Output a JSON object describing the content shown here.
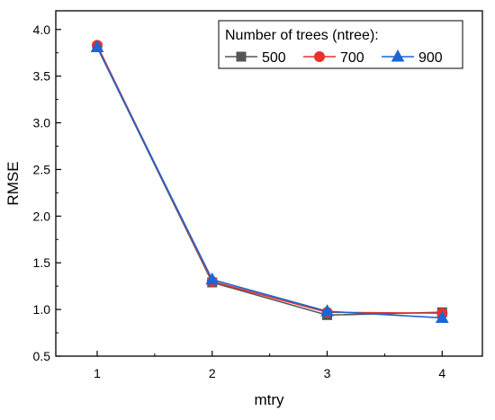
{
  "chart_data": {
    "type": "line",
    "title": "",
    "xlabel": "mtry",
    "ylabel": "RMSE",
    "x": [
      1,
      2,
      3,
      4
    ],
    "x_tick_labels": [
      "1",
      "2",
      "3",
      "4"
    ],
    "xlim": [
      0.64,
      4.35
    ],
    "ylim": [
      0.5,
      4.2
    ],
    "y_ticks": [
      0.5,
      1.0,
      1.5,
      2.0,
      2.5,
      3.0,
      3.5,
      4.0
    ],
    "y_tick_labels": [
      "0.5",
      "1.0",
      "1.5",
      "2.0",
      "2.5",
      "3.0",
      "3.5",
      "4.0"
    ],
    "grid": false,
    "legend": {
      "title": "Number of trees (ntree):",
      "placement": "top-right"
    },
    "series": [
      {
        "name": "500",
        "values": [
          3.81,
          1.29,
          0.94,
          0.97
        ],
        "color": "#555555",
        "marker": "square"
      },
      {
        "name": "700",
        "values": [
          3.83,
          1.3,
          0.97,
          0.96
        ],
        "color": "#e8312a",
        "marker": "circle"
      },
      {
        "name": "900",
        "values": [
          3.81,
          1.32,
          0.98,
          0.91
        ],
        "color": "#1a66d6",
        "marker": "triangle"
      }
    ]
  }
}
